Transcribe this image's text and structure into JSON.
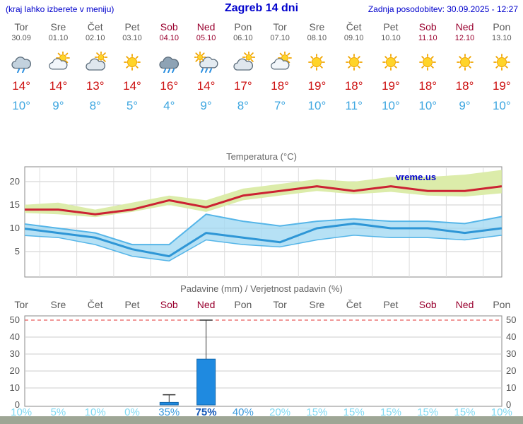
{
  "header": {
    "hint": "(kraj lahko izberete v meniju)",
    "title": "Zagreb 14 dni",
    "updated": "Zadnja posodobitev: 30.09.2025 - 12:27"
  },
  "watermark": "vreme.us",
  "colors": {
    "accent_blue": "#0000cc",
    "weekend_red": "#99002e",
    "tmax_red": "#cc0f0f",
    "tmin_blue": "#3da6e0",
    "bar_blue": "#1f8ae0",
    "band_yellow": "#dcecaa",
    "band_blue": "#9ed7f2",
    "max_line_red": "#cc2233",
    "min_line_blue": "#2e96d6",
    "rain_limit_red": "#e03030"
  },
  "days": [
    {
      "name": "Tor",
      "date": "30.09",
      "weekend": false,
      "icon": "cloud-rain",
      "tmax": "14°",
      "tmin": "10°",
      "precip_pct": "10%",
      "pct_level": "low"
    },
    {
      "name": "Sre",
      "date": "01.10",
      "weekend": false,
      "icon": "sun-cloud",
      "tmax": "14°",
      "tmin": "9°",
      "precip_pct": "5%",
      "pct_level": "low"
    },
    {
      "name": "Čet",
      "date": "02.10",
      "weekend": false,
      "icon": "cloud-sun",
      "tmax": "13°",
      "tmin": "8°",
      "precip_pct": "10%",
      "pct_level": "low"
    },
    {
      "name": "Pet",
      "date": "03.10",
      "weekend": false,
      "icon": "sunny",
      "tmax": "14°",
      "tmin": "5°",
      "precip_pct": "0%",
      "pct_level": "low"
    },
    {
      "name": "Sob",
      "date": "04.10",
      "weekend": true,
      "icon": "rain",
      "tmax": "16°",
      "tmin": "4°",
      "precip_pct": "35%",
      "pct_level": "mid"
    },
    {
      "name": "Ned",
      "date": "05.10",
      "weekend": true,
      "icon": "sun-rain",
      "tmax": "14°",
      "tmin": "9°",
      "precip_pct": "75%",
      "pct_level": "high"
    },
    {
      "name": "Pon",
      "date": "06.10",
      "weekend": false,
      "icon": "cloud-sun",
      "tmax": "17°",
      "tmin": "8°",
      "precip_pct": "40%",
      "pct_level": "mid"
    },
    {
      "name": "Tor",
      "date": "07.10",
      "weekend": false,
      "icon": "sun-cloud",
      "tmax": "18°",
      "tmin": "7°",
      "precip_pct": "20%",
      "pct_level": "low"
    },
    {
      "name": "Sre",
      "date": "08.10",
      "weekend": false,
      "icon": "sunny",
      "tmax": "19°",
      "tmin": "10°",
      "precip_pct": "15%",
      "pct_level": "low"
    },
    {
      "name": "Čet",
      "date": "09.10",
      "weekend": false,
      "icon": "sunny",
      "tmax": "18°",
      "tmin": "11°",
      "precip_pct": "15%",
      "pct_level": "low"
    },
    {
      "name": "Pet",
      "date": "10.10",
      "weekend": false,
      "icon": "sunny",
      "tmax": "19°",
      "tmin": "10°",
      "precip_pct": "15%",
      "pct_level": "low"
    },
    {
      "name": "Sob",
      "date": "11.10",
      "weekend": true,
      "icon": "sunny",
      "tmax": "18°",
      "tmin": "10°",
      "precip_pct": "15%",
      "pct_level": "low"
    },
    {
      "name": "Ned",
      "date": "12.10",
      "weekend": true,
      "icon": "sunny",
      "tmax": "18°",
      "tmin": "9°",
      "precip_pct": "15%",
      "pct_level": "low"
    },
    {
      "name": "Pon",
      "date": "13.10",
      "weekend": false,
      "icon": "sunny",
      "tmax": "19°",
      "tmin": "10°",
      "precip_pct": "10%",
      "pct_level": "low"
    }
  ],
  "chart_data": {
    "temperature": {
      "type": "line",
      "title": "Temperatura (°C)",
      "yticks": [
        5,
        10,
        15,
        20
      ],
      "ylim": [
        0,
        23
      ],
      "grid": true,
      "categories": [
        "Tor 30.09",
        "Sre 01.10",
        "Čet 02.10",
        "Pet 03.10",
        "Sob 04.10",
        "Ned 05.10",
        "Pon 06.10",
        "Tor 07.10",
        "Sre 08.10",
        "Čet 09.10",
        "Pet 10.10",
        "Sob 11.10",
        "Ned 12.10",
        "Pon 13.10"
      ],
      "series": {
        "high": [
          14,
          14,
          13,
          14,
          16,
          14.5,
          17,
          18,
          19,
          18,
          19,
          18,
          18,
          19
        ],
        "high_upper": [
          15,
          15.5,
          14,
          15.5,
          17,
          16,
          18.5,
          19.5,
          20.5,
          20,
          21,
          21,
          21.5,
          22.5
        ],
        "high_lower": [
          13.3,
          13,
          12.4,
          13.5,
          15,
          13.5,
          16,
          17,
          18,
          17.3,
          17.8,
          17,
          16.8,
          17.5
        ],
        "low": [
          10,
          9,
          8,
          5.5,
          4,
          9,
          8,
          7,
          10,
          11,
          10,
          10,
          9,
          10
        ],
        "low_upper": [
          11,
          10,
          9,
          6.5,
          6.5,
          13,
          11.5,
          10.5,
          11.5,
          12,
          11.5,
          11.5,
          11,
          12.5
        ],
        "low_lower": [
          8.5,
          8,
          6.5,
          4,
          3,
          7.5,
          6.5,
          6,
          7.5,
          8.5,
          8,
          8,
          7.5,
          8.5
        ]
      }
    },
    "precipitation": {
      "type": "bar",
      "title": "Padavine (mm) / Verjetnost padavin (%)",
      "yticks": [
        0,
        10,
        20,
        30,
        40,
        50
      ],
      "ylim": [
        0,
        52
      ],
      "categories": [
        "Tor",
        "Sre",
        "Čet",
        "Pet",
        "Sob",
        "Ned",
        "Pon",
        "Tor",
        "Sre",
        "Čet",
        "Pet",
        "Sob",
        "Ned",
        "Pon"
      ],
      "bars_mm": [
        0,
        0,
        0,
        0,
        1.5,
        27,
        0,
        0,
        0,
        0,
        0,
        0,
        0,
        0
      ],
      "whisker_mm": [
        0,
        0,
        0,
        0,
        6,
        50,
        0,
        0,
        0,
        0,
        0,
        0,
        0,
        0
      ],
      "probability_pct": [
        10,
        5,
        10,
        0,
        35,
        75,
        40,
        20,
        15,
        15,
        15,
        15,
        15,
        10
      ]
    }
  }
}
